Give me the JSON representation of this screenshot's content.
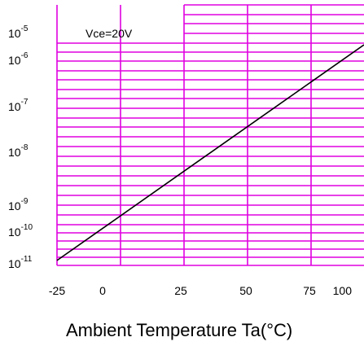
{
  "chart_data": {
    "type": "line",
    "x_ticks": [
      "-25",
      "0",
      "25",
      "50",
      "75",
      "100"
    ],
    "y_ticks": [
      {
        "base": "10",
        "exp": "-5"
      },
      {
        "base": "10",
        "exp": "-6"
      },
      {
        "base": "10",
        "exp": "-7"
      },
      {
        "base": "10",
        "exp": "-8"
      },
      {
        "base": "10",
        "exp": "-9"
      },
      {
        "base": "10",
        "exp": "-10"
      },
      {
        "base": "10",
        "exp": "-11"
      }
    ],
    "xlabel": "Ambient Temperature Ta(°C)",
    "ylabel": "",
    "annotation": "Vce=20V",
    "xlim": [
      -25,
      120
    ],
    "y_scale": "log",
    "grid": true,
    "colors": {
      "grid": "#e000e0",
      "line": "#000000"
    },
    "series": [
      {
        "x": [
          -25,
          120
        ],
        "y": [
          1.2e-11,
          3.5e-06
        ]
      }
    ]
  }
}
